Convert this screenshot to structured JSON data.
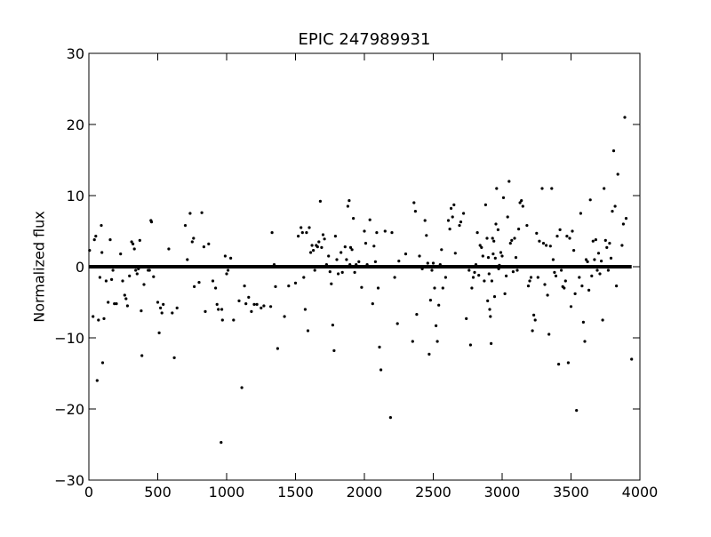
{
  "chart_data": {
    "type": "scatter",
    "title": "EPIC 247989931",
    "xlabel": "",
    "ylabel": "Normalized flux",
    "xlim": [
      0,
      4000
    ],
    "ylim": [
      -30,
      30
    ],
    "xticks": [
      0,
      500,
      1000,
      1500,
      2000,
      2500,
      3000,
      3500,
      4000
    ],
    "yticks": [
      -30,
      -20,
      -10,
      0,
      10,
      20,
      30
    ],
    "baseline": {
      "x_start": 0,
      "x_end": 3940,
      "y": 0
    },
    "series": [
      {
        "points": [
          [
            5,
            2.3
          ],
          [
            30,
            -7
          ],
          [
            40,
            3.8
          ],
          [
            50,
            4.3
          ],
          [
            60,
            -16
          ],
          [
            70,
            -7.5
          ],
          [
            80,
            -1.5
          ],
          [
            90,
            5.8
          ],
          [
            95,
            2
          ],
          [
            100,
            -13.5
          ],
          [
            110,
            -7.3
          ],
          [
            125,
            -2
          ],
          [
            140,
            -5
          ],
          [
            155,
            3.8
          ],
          [
            165,
            -1.8
          ],
          [
            175,
            -0.5
          ],
          [
            185,
            -5.2
          ],
          [
            200,
            -5.2
          ],
          [
            230,
            1.8
          ],
          [
            245,
            -2
          ],
          [
            260,
            -4
          ],
          [
            270,
            -4.5
          ],
          [
            280,
            -5.5
          ],
          [
            295,
            -1.3
          ],
          [
            310,
            3.5
          ],
          [
            320,
            3.2
          ],
          [
            330,
            2.5
          ],
          [
            340,
            -0.5
          ],
          [
            350,
            -1
          ],
          [
            360,
            -0.3
          ],
          [
            370,
            3.7
          ],
          [
            380,
            -6.2
          ],
          [
            385,
            -12.5
          ],
          [
            400,
            -2.5
          ],
          [
            430,
            -0.5
          ],
          [
            440,
            -0.5
          ],
          [
            450,
            6.5
          ],
          [
            455,
            6.3
          ],
          [
            470,
            -1.4
          ],
          [
            500,
            -5
          ],
          [
            510,
            -9.3
          ],
          [
            520,
            -5.8
          ],
          [
            530,
            -6.5
          ],
          [
            540,
            -5.3
          ],
          [
            580,
            2.5
          ],
          [
            605,
            -6.5
          ],
          [
            620,
            -12.8
          ],
          [
            640,
            -5.8
          ],
          [
            700,
            5.8
          ],
          [
            715,
            1
          ],
          [
            735,
            7.5
          ],
          [
            750,
            3.5
          ],
          [
            760,
            4
          ],
          [
            765,
            -2.8
          ],
          [
            800,
            -2.2
          ],
          [
            820,
            7.6
          ],
          [
            835,
            2.8
          ],
          [
            845,
            -6.3
          ],
          [
            870,
            3.2
          ],
          [
            900,
            -2
          ],
          [
            920,
            -3
          ],
          [
            930,
            -5.3
          ],
          [
            940,
            -6
          ],
          [
            960,
            -24.7
          ],
          [
            965,
            -6
          ],
          [
            970,
            -7.5
          ],
          [
            990,
            1.5
          ],
          [
            1000,
            -1
          ],
          [
            1010,
            -0.5
          ],
          [
            1030,
            1.2
          ],
          [
            1050,
            -7.5
          ],
          [
            1090,
            -4.8
          ],
          [
            1110,
            -17
          ],
          [
            1130,
            -2.7
          ],
          [
            1140,
            -5.2
          ],
          [
            1160,
            -4.3
          ],
          [
            1180,
            -6.3
          ],
          [
            1200,
            -5.3
          ],
          [
            1220,
            -5.3
          ],
          [
            1250,
            -5.8
          ],
          [
            1270,
            -5.5
          ],
          [
            1320,
            -5.6
          ],
          [
            1330,
            4.8
          ],
          [
            1345,
            0.3
          ],
          [
            1355,
            -2.8
          ],
          [
            1370,
            -11.5
          ],
          [
            1420,
            -7
          ],
          [
            1450,
            -2.7
          ],
          [
            1500,
            -2.3
          ],
          [
            1520,
            4.3
          ],
          [
            1540,
            5.5
          ],
          [
            1550,
            4.8
          ],
          [
            1560,
            -1.5
          ],
          [
            1570,
            -6
          ],
          [
            1580,
            4.8
          ],
          [
            1590,
            -9
          ],
          [
            1600,
            5.5
          ],
          [
            1610,
            2
          ],
          [
            1620,
            3
          ],
          [
            1630,
            2.3
          ],
          [
            1640,
            -0.5
          ],
          [
            1650,
            3
          ],
          [
            1660,
            2.8
          ],
          [
            1670,
            3.5
          ],
          [
            1680,
            9.2
          ],
          [
            1690,
            2.7
          ],
          [
            1700,
            4.5
          ],
          [
            1710,
            3.9
          ],
          [
            1725,
            0.3
          ],
          [
            1740,
            1.5
          ],
          [
            1750,
            -0.7
          ],
          [
            1760,
            -2.4
          ],
          [
            1770,
            -8.2
          ],
          [
            1780,
            -11.8
          ],
          [
            1790,
            4.3
          ],
          [
            1800,
            1
          ],
          [
            1810,
            -1
          ],
          [
            1830,
            2
          ],
          [
            1840,
            -0.8
          ],
          [
            1860,
            2.8
          ],
          [
            1870,
            1
          ],
          [
            1880,
            8.5
          ],
          [
            1890,
            9.3
          ],
          [
            1895,
            0.3
          ],
          [
            1900,
            2.7
          ],
          [
            1910,
            2.4
          ],
          [
            1920,
            6.8
          ],
          [
            1930,
            -0.8
          ],
          [
            1940,
            0.3
          ],
          [
            1960,
            0.7
          ],
          [
            1980,
            -2.9
          ],
          [
            2000,
            5
          ],
          [
            2010,
            3.3
          ],
          [
            2020,
            0.3
          ],
          [
            2040,
            6.6
          ],
          [
            2060,
            -5.2
          ],
          [
            2070,
            2.9
          ],
          [
            2080,
            0.7
          ],
          [
            2090,
            4.8
          ],
          [
            2100,
            -3
          ],
          [
            2110,
            -11.3
          ],
          [
            2120,
            -14.5
          ],
          [
            2150,
            5
          ],
          [
            2190,
            -21.2
          ],
          [
            2200,
            4.8
          ],
          [
            2220,
            -1.5
          ],
          [
            2240,
            -8
          ],
          [
            2250,
            0.8
          ],
          [
            2300,
            1.8
          ],
          [
            2350,
            -10.5
          ],
          [
            2360,
            9
          ],
          [
            2370,
            7.8
          ],
          [
            2380,
            -6.7
          ],
          [
            2400,
            1.5
          ],
          [
            2420,
            -0.3
          ],
          [
            2440,
            6.5
          ],
          [
            2450,
            4.4
          ],
          [
            2460,
            0.5
          ],
          [
            2470,
            -12.3
          ],
          [
            2480,
            -4.7
          ],
          [
            2490,
            -0.5
          ],
          [
            2500,
            0.5
          ],
          [
            2510,
            -3
          ],
          [
            2520,
            -8.3
          ],
          [
            2530,
            -10.5
          ],
          [
            2540,
            -5.4
          ],
          [
            2550,
            0.3
          ],
          [
            2560,
            2.4
          ],
          [
            2570,
            -3
          ],
          [
            2590,
            -1.5
          ],
          [
            2610,
            6.5
          ],
          [
            2620,
            5.3
          ],
          [
            2630,
            8.2
          ],
          [
            2640,
            7
          ],
          [
            2650,
            8.7
          ],
          [
            2660,
            1.9
          ],
          [
            2690,
            5.8
          ],
          [
            2700,
            6.3
          ],
          [
            2720,
            7.5
          ],
          [
            2740,
            -7.3
          ],
          [
            2760,
            -0.5
          ],
          [
            2770,
            -11
          ],
          [
            2780,
            -3
          ],
          [
            2790,
            -1.5
          ],
          [
            2800,
            -0.8
          ],
          [
            2810,
            0.3
          ],
          [
            2820,
            4.8
          ],
          [
            2830,
            -1.2
          ],
          [
            2840,
            3
          ],
          [
            2850,
            2.7
          ],
          [
            2860,
            1.5
          ],
          [
            2870,
            -2
          ],
          [
            2880,
            8.7
          ],
          [
            2890,
            4
          ],
          [
            2895,
            -4.8
          ],
          [
            2900,
            1.3
          ],
          [
            2905,
            -1
          ],
          [
            2910,
            -6
          ],
          [
            2915,
            -7
          ],
          [
            2920,
            -10.8
          ],
          [
            2925,
            -2
          ],
          [
            2930,
            4
          ],
          [
            2935,
            1.8
          ],
          [
            2940,
            3.6
          ],
          [
            2945,
            -4.2
          ],
          [
            2950,
            1.2
          ],
          [
            2955,
            6
          ],
          [
            2960,
            11
          ],
          [
            2970,
            5.2
          ],
          [
            2975,
            -0.3
          ],
          [
            2980,
            0.2
          ],
          [
            2990,
            2
          ],
          [
            3000,
            1.5
          ],
          [
            3010,
            9.7
          ],
          [
            3020,
            -3.8
          ],
          [
            3030,
            -1.3
          ],
          [
            3040,
            7
          ],
          [
            3050,
            12
          ],
          [
            3060,
            3.3
          ],
          [
            3070,
            3.7
          ],
          [
            3080,
            -0.7
          ],
          [
            3090,
            4
          ],
          [
            3100,
            1.3
          ],
          [
            3110,
            -0.5
          ],
          [
            3120,
            5.3
          ],
          [
            3130,
            9
          ],
          [
            3140,
            9.3
          ],
          [
            3150,
            8.5
          ],
          [
            3180,
            5.8
          ],
          [
            3190,
            -2.7
          ],
          [
            3200,
            -2
          ],
          [
            3210,
            -1.5
          ],
          [
            3220,
            -9
          ],
          [
            3230,
            -6.8
          ],
          [
            3240,
            -7.5
          ],
          [
            3250,
            4.7
          ],
          [
            3260,
            -1.5
          ],
          [
            3270,
            3.6
          ],
          [
            3280,
            0
          ],
          [
            3290,
            11
          ],
          [
            3300,
            3.3
          ],
          [
            3310,
            -2.5
          ],
          [
            3320,
            3
          ],
          [
            3330,
            -4
          ],
          [
            3340,
            -9.5
          ],
          [
            3350,
            2.9
          ],
          [
            3360,
            11
          ],
          [
            3370,
            1
          ],
          [
            3380,
            -0.8
          ],
          [
            3390,
            -1.3
          ],
          [
            3400,
            4.3
          ],
          [
            3410,
            -13.7
          ],
          [
            3420,
            5.2
          ],
          [
            3430,
            -0.5
          ],
          [
            3440,
            -2.8
          ],
          [
            3450,
            -3
          ],
          [
            3460,
            -2
          ],
          [
            3470,
            4.3
          ],
          [
            3480,
            -13.5
          ],
          [
            3490,
            4
          ],
          [
            3500,
            -5.6
          ],
          [
            3510,
            5
          ],
          [
            3520,
            2.3
          ],
          [
            3530,
            -3.8
          ],
          [
            3540,
            -20.2
          ],
          [
            3550,
            0
          ],
          [
            3560,
            -1.5
          ],
          [
            3570,
            7.5
          ],
          [
            3580,
            -2.7
          ],
          [
            3590,
            -7.8
          ],
          [
            3600,
            -10.5
          ],
          [
            3610,
            1
          ],
          [
            3620,
            0.7
          ],
          [
            3630,
            -3.3
          ],
          [
            3640,
            9.4
          ],
          [
            3650,
            -1.3
          ],
          [
            3660,
            3.6
          ],
          [
            3670,
            1
          ],
          [
            3680,
            3.8
          ],
          [
            3690,
            -0.5
          ],
          [
            3700,
            1.9
          ],
          [
            3710,
            -1
          ],
          [
            3720,
            0.8
          ],
          [
            3730,
            -7.5
          ],
          [
            3740,
            11
          ],
          [
            3750,
            3.7
          ],
          [
            3760,
            2.7
          ],
          [
            3770,
            -0.5
          ],
          [
            3780,
            3.3
          ],
          [
            3790,
            1.2
          ],
          [
            3800,
            7.8
          ],
          [
            3810,
            16.3
          ],
          [
            3820,
            8.5
          ],
          [
            3830,
            -2.7
          ],
          [
            3840,
            13
          ],
          [
            3850,
            0
          ],
          [
            3870,
            3
          ],
          [
            3880,
            6
          ],
          [
            3890,
            21
          ],
          [
            3900,
            6.8
          ],
          [
            3940,
            -13
          ]
        ]
      }
    ]
  }
}
